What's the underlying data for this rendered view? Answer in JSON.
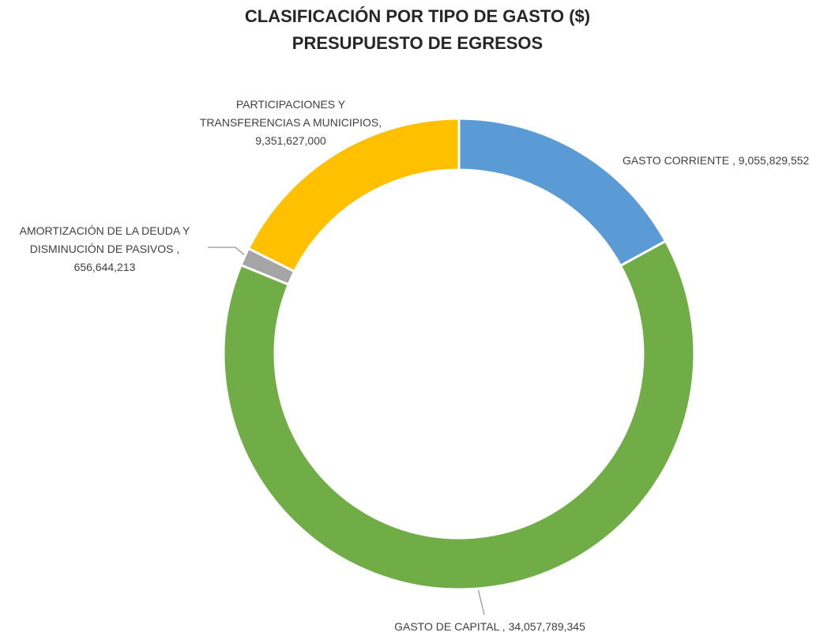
{
  "chart_data": {
    "type": "donut",
    "title": "CLASIFICACIÓN POR TIPO DE GASTO ($)",
    "subtitle": "PRESUPUESTO DE EGRESOS",
    "categories": [
      "GASTO CORRIENTE ,",
      "GASTO DE CAPITAL ,",
      "AMORTIZACIÓN DE LA DEUDA Y DISMINUCIÓN DE PASIVOS ,",
      "PARTICIPACIONES Y TRANSFERENCIAS A MUNICIPIOS,"
    ],
    "values": [
      9055829552,
      34057789345,
      656644213,
      9351627000
    ],
    "value_labels": [
      "9,055,829,552",
      "34,057,789,345",
      "656,644,213",
      "9,351,627,000"
    ],
    "colors": [
      "#5b9bd5",
      "#70ad47",
      "#a5a5a5",
      "#ffc000"
    ]
  }
}
